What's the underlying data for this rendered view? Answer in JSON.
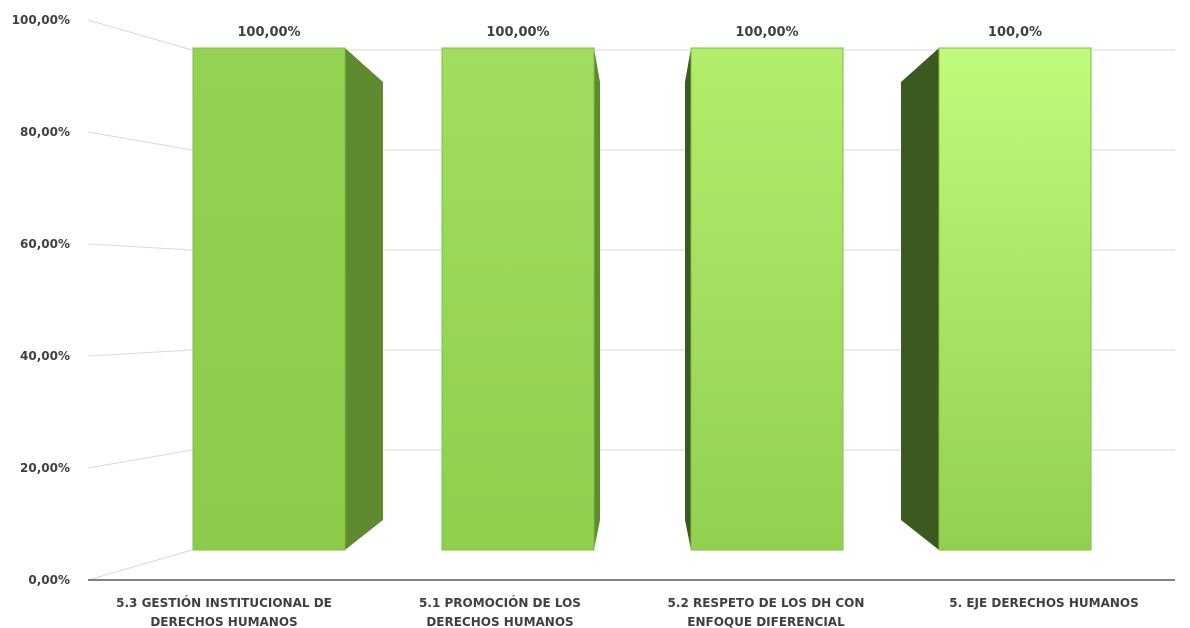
{
  "chart_data": {
    "type": "bar",
    "categories": [
      [
        "5.3 GESTIÓN INSTITUCIONAL DE",
        "DERECHOS HUMANOS"
      ],
      [
        "5.1 PROMOCIÓN  DE LOS",
        "DERECHOS HUMANOS"
      ],
      [
        "5.2 RESPETO DE LOS DH CON",
        "ENFOQUE DIFERENCIAL"
      ],
      [
        "5. EJE DERECHOS HUMANOS"
      ]
    ],
    "values": [
      100,
      100,
      100,
      100
    ],
    "data_labels": [
      "100,00%",
      "100,00%",
      "100,00%",
      "100,0%"
    ],
    "yticks": [
      "0,00%",
      "20,00%",
      "40,00%",
      "60,00%",
      "80,00%",
      "100,00%"
    ],
    "ylim": [
      0,
      100
    ],
    "grid": true,
    "legend": "none",
    "title": "",
    "xlabel": "",
    "ylabel": "",
    "colors": {
      "front": [
        "#92d050",
        "#98d655",
        "#a6e066",
        "#b6f070"
      ],
      "side": [
        "#5e8a30",
        "#5e8a30",
        "#3a5a20",
        "#3a5a20"
      ],
      "grid": "#d9d9d9",
      "axis": "#595959"
    }
  }
}
